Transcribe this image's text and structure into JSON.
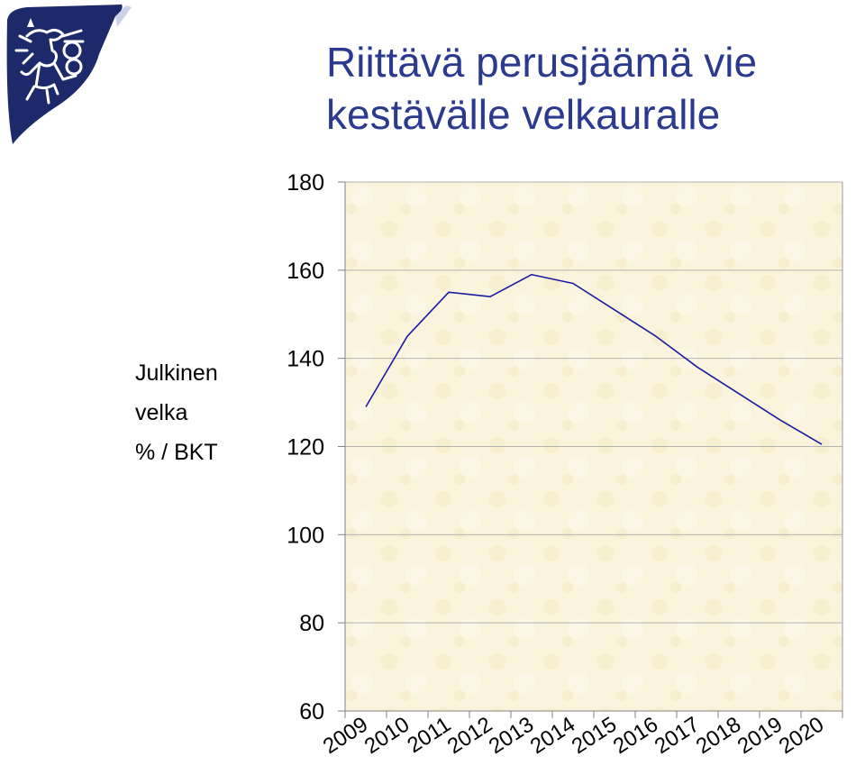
{
  "header": {
    "title_line1": "Riittävä perusjäämä vie",
    "title_line2": "kestävälle velkauralle"
  },
  "colors": {
    "title": "#2b3a8f",
    "line": "#1a1aa6",
    "plot_background": "#fbf4dc"
  },
  "icons": {
    "logo": "finnish-lion-emblem-icon"
  },
  "chart_data": {
    "type": "line",
    "ylabel_lines": [
      "Julkinen",
      "velka",
      "% / BKT"
    ],
    "categories": [
      "2009",
      "2010",
      "2011",
      "2012",
      "2013",
      "2014",
      "2015",
      "2016",
      "2017",
      "2018",
      "2019",
      "2020"
    ],
    "series": [
      {
        "values": [
          129,
          145,
          155,
          154,
          159,
          157,
          151,
          145,
          138,
          132,
          126,
          120.5
        ]
      }
    ],
    "ylim": [
      60,
      180
    ],
    "yticks": [
      60,
      80,
      100,
      120,
      140,
      160,
      180
    ],
    "grid": true
  }
}
